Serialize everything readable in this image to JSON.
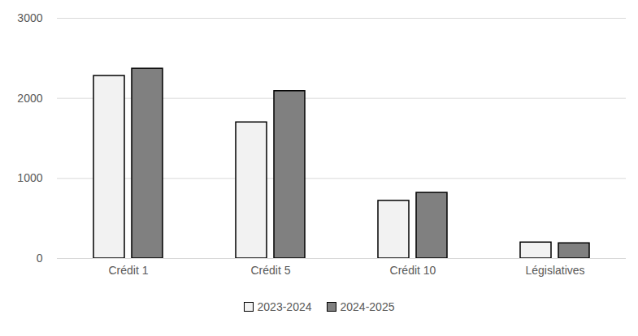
{
  "chart_data": {
    "type": "bar",
    "categories": [
      "Crédit 1",
      "Crédit 5",
      "Crédit 10",
      "Législatives"
    ],
    "series": [
      {
        "name": "2023-2024",
        "color": "#f2f2f2",
        "values": [
          2280,
          1700,
          720,
          200
        ]
      },
      {
        "name": "2024-2025",
        "color": "#808080",
        "values": [
          2370,
          2090,
          820,
          190
        ]
      }
    ],
    "ylim": [
      0,
      3000
    ],
    "yticks": [
      0,
      1000,
      2000,
      3000
    ],
    "grid": true,
    "legend": "bottom"
  }
}
